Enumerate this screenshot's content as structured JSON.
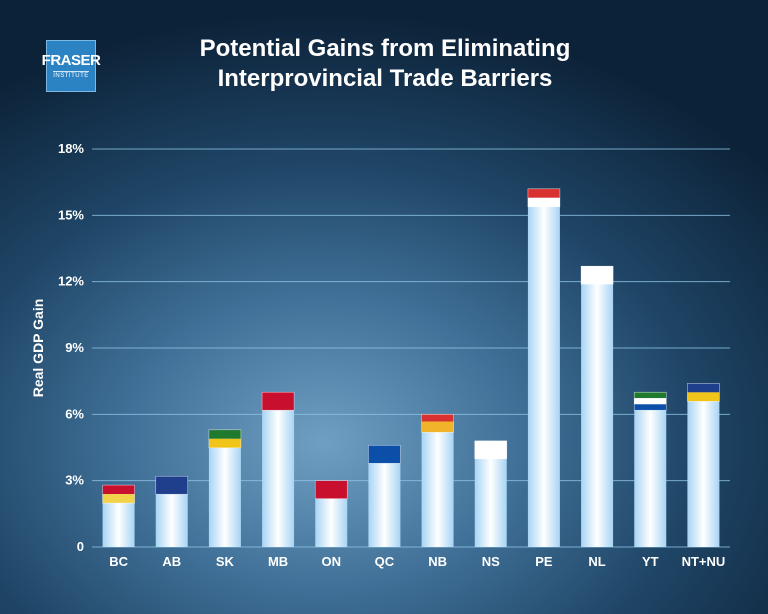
{
  "logo": {
    "line1": "FRASER",
    "line2": "INSTITUTE"
  },
  "chart_data": {
    "type": "bar",
    "title": "Potential Gains from Eliminating Interprovincial Trade Barriers",
    "title_lines": [
      "Potential Gains from Eliminating",
      "Interprovincial Trade Barriers"
    ],
    "xlabel": "",
    "ylabel": "Real GDP Gain",
    "categories": [
      "BC",
      "AB",
      "SK",
      "MB",
      "ON",
      "QC",
      "NB",
      "NS",
      "PE",
      "NL",
      "YT",
      "NT+NU"
    ],
    "values": [
      2.8,
      3.2,
      5.3,
      7.0,
      3.0,
      4.6,
      6.0,
      4.8,
      16.2,
      12.7,
      7.0,
      7.4
    ],
    "ylim": [
      0,
      18
    ],
    "yticks": [
      0,
      3,
      6,
      9,
      12,
      15,
      18
    ],
    "ytick_labels": [
      "0",
      "3%",
      "6%",
      "9%",
      "12%",
      "15%",
      "18%"
    ],
    "grid": true,
    "colors": {
      "bar_edge": "#a7d4f4",
      "bar_center": "#ffffff",
      "grid": "#8fc4e6"
    }
  }
}
